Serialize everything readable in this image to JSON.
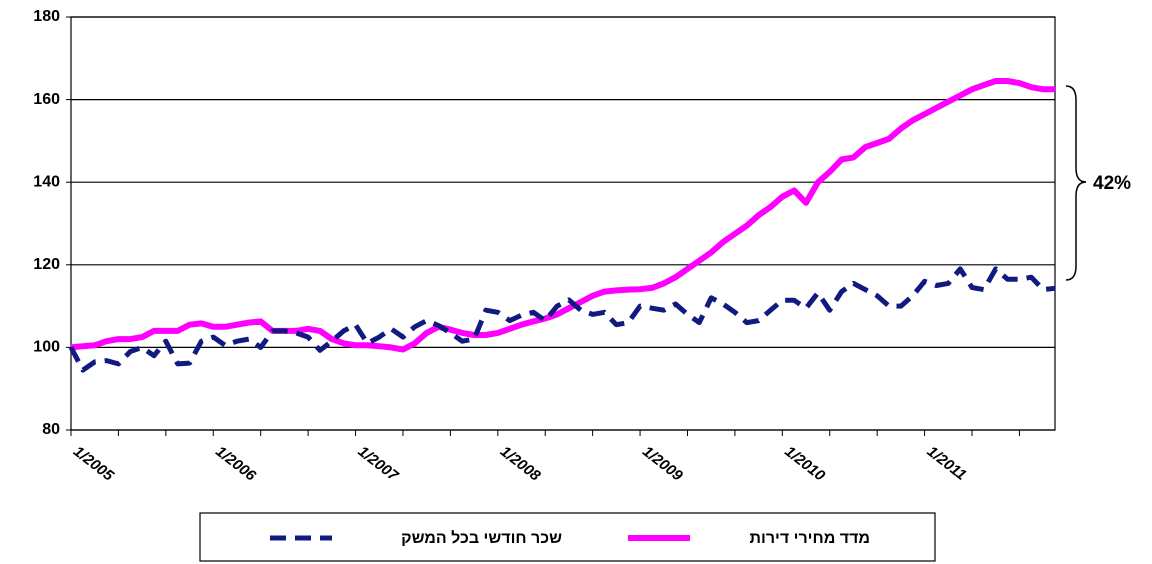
{
  "chart_data": {
    "type": "line",
    "categories": [
      "1/2005",
      null,
      null,
      null,
      null,
      null,
      null,
      null,
      null,
      null,
      null,
      null,
      "1/2006",
      null,
      null,
      null,
      null,
      null,
      null,
      null,
      null,
      null,
      null,
      null,
      "1/2007",
      null,
      null,
      null,
      null,
      null,
      null,
      null,
      null,
      null,
      null,
      null,
      "1/2008",
      null,
      null,
      null,
      null,
      null,
      null,
      null,
      null,
      null,
      null,
      null,
      "1/2009",
      null,
      null,
      null,
      null,
      null,
      null,
      null,
      null,
      null,
      null,
      null,
      "1/2010",
      null,
      null,
      null,
      null,
      null,
      null,
      null,
      null,
      null,
      null,
      null,
      "1/2011",
      null,
      null,
      null,
      null,
      null,
      null,
      null,
      null,
      null,
      null,
      null
    ],
    "series": [
      {
        "name": "מדד מחירי דירות",
        "color": "#ff00ff",
        "dashed": false,
        "values": [
          100,
          100.3,
          100.5,
          101.5,
          102,
          102,
          102.5,
          104,
          104,
          104,
          105.5,
          105.8,
          105,
          105,
          105.5,
          106,
          106.3,
          104,
          104,
          104,
          104.5,
          104,
          102,
          101,
          100.5,
          100.5,
          100.3,
          100,
          99.5,
          101,
          103.5,
          105,
          104.3,
          103.5,
          103,
          103,
          103.5,
          104.5,
          105.5,
          106.3,
          107,
          108,
          109.5,
          111,
          112.5,
          113.5,
          113.8,
          114,
          114.1,
          114.4,
          115.5,
          117,
          119,
          121,
          123,
          125.5,
          127.5,
          129.5,
          132,
          134,
          136.5,
          138,
          135,
          140,
          142.5,
          145.5,
          146,
          148.5,
          149.5,
          150.5,
          153,
          155,
          156.5,
          158,
          159.5,
          161,
          162.5,
          163.5,
          164.5,
          164.5,
          164,
          163,
          162.5,
          162.5
        ]
      },
      {
        "name": "שכר חודשי בכל המשק",
        "color": "#101a80",
        "dashed": true,
        "values": [
          100,
          94.5,
          96.5,
          96.8,
          96,
          99,
          100,
          98,
          101.5,
          96,
          96.2,
          101.5,
          102.5,
          100.5,
          101.5,
          102,
          100,
          104,
          104,
          103.5,
          102.5,
          99.3,
          101.5,
          104,
          105.5,
          101,
          102.5,
          104.5,
          102.5,
          105,
          106.5,
          105.3,
          103.5,
          101.5,
          102,
          109,
          108.5,
          106.5,
          107.8,
          108.5,
          106.5,
          110,
          111.5,
          109,
          108,
          108.5,
          105.5,
          106,
          110,
          109.5,
          109,
          110.5,
          108,
          106,
          112,
          110.5,
          108.5,
          106,
          106.5,
          109,
          111.4,
          111.4,
          109.5,
          113.2,
          109,
          113.5,
          115.5,
          114,
          112.5,
          110,
          110,
          112.5,
          116,
          115,
          115.5,
          119,
          114.5,
          114,
          119,
          116.5,
          116.5,
          117,
          114,
          114.3
        ]
      }
    ],
    "ylim": [
      80,
      180
    ],
    "yticks": [
      80,
      100,
      120,
      140,
      160,
      180
    ],
    "grid": true,
    "annotation": "42%"
  }
}
